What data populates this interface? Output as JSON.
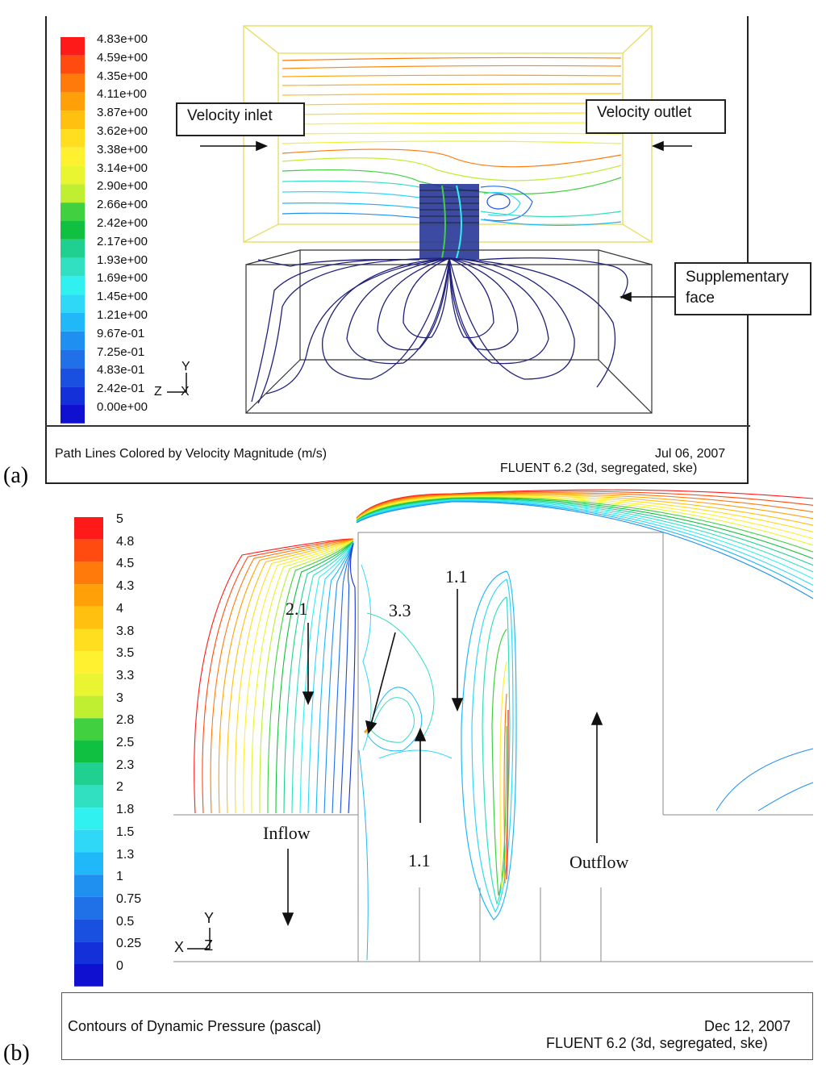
{
  "panel_a": {
    "label": "(a)",
    "legend_values": [
      "4.83e+00",
      "4.59e+00",
      "4.35e+00",
      "4.11e+00",
      "3.87e+00",
      "3.62e+00",
      "3.38e+00",
      "3.14e+00",
      "2.90e+00",
      "2.66e+00",
      "2.42e+00",
      "2.17e+00",
      "1.93e+00",
      "1.69e+00",
      "1.45e+00",
      "1.21e+00",
      "9.67e-01",
      "7.25e-01",
      "4.83e-01",
      "2.42e-01",
      "0.00e+00"
    ],
    "callouts": {
      "inlet": "Velocity inlet",
      "outlet": "Velocity outlet",
      "supplementary_line1": "Supplementary",
      "supplementary_line2": "face"
    },
    "axes": {
      "y": "Y",
      "z": "Z",
      "x": "X"
    },
    "footer": {
      "title": "Path Lines Colored by Velocity Magnitude (m/s)",
      "date": "Jul 06, 2007",
      "solver": "FLUENT 6.2 (3d, segregated, ske)"
    }
  },
  "panel_b": {
    "label": "(b)",
    "legend_values": [
      "5",
      "4.8",
      "4.5",
      "4.3",
      "4",
      "3.8",
      "3.5",
      "3.3",
      "3",
      "2.8",
      "2.5",
      "2.3",
      "2",
      "1.8",
      "1.5",
      "1.3",
      "1",
      "0.75",
      "0.5",
      "0.25",
      "0"
    ],
    "annotations": {
      "a1": "2.1",
      "a2": "3.3",
      "a3": "1.1",
      "a4": "1.1",
      "inflow": "Inflow",
      "outflow": "Outflow"
    },
    "axes": {
      "y": "Y",
      "x": "X",
      "z": "Z"
    },
    "footer": {
      "title": "Contours of Dynamic Pressure (pascal)",
      "date": "Dec 12, 2007",
      "solver": "FLUENT 6.2 (3d, segregated, ske)"
    }
  },
  "colors": {
    "scale": [
      "#ff1a1a",
      "#ff4a10",
      "#ff7a0a",
      "#ffa008",
      "#ffc010",
      "#ffde20",
      "#fff030",
      "#e8f530",
      "#c0ee30",
      "#40d040",
      "#10c040",
      "#20d090",
      "#30e0c0",
      "#30f0f0",
      "#30d8f8",
      "#20b8f8",
      "#2090f0",
      "#2070e8",
      "#1a50e0",
      "#1430d8",
      "#1010d0"
    ],
    "pathline_dark": "#20207a"
  }
}
